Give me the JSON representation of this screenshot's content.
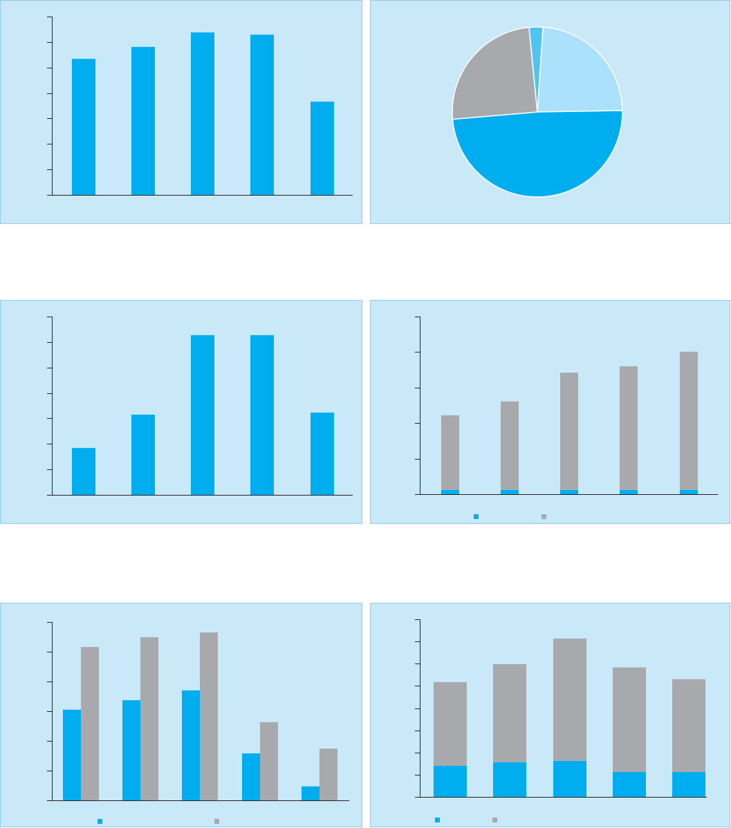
{
  "colors": {
    "panel_bg": "#c9e9f8",
    "axis": "#231f20",
    "blue": "#00aeef",
    "gray": "#a7a9ac",
    "light_blue": "#abe1fa",
    "cyan": "#4fc4f0"
  },
  "chart_data": [
    {
      "type": "bar",
      "grid": false,
      "ylim": [
        0,
        7
      ],
      "series": [
        {
          "color": "blue",
          "values": [
            5.34,
            5.81,
            6.38,
            6.29,
            3.66
          ]
        }
      ]
    },
    {
      "type": "pie",
      "slices": [
        {
          "color": "light_blue",
          "value": 23.7
        },
        {
          "color": "blue",
          "value": 48.9
        },
        {
          "color": "gray",
          "value": 24.8
        },
        {
          "color": "cyan",
          "value": 2.6
        }
      ]
    },
    {
      "type": "bar",
      "grid": false,
      "ylim": [
        0,
        7
      ],
      "series": [
        {
          "color": "blue",
          "values": [
            1.84,
            3.15,
            6.27,
            6.27,
            3.23
          ]
        }
      ]
    },
    {
      "type": "bar",
      "stacked": true,
      "grid": false,
      "ylim": [
        0,
        5
      ],
      "legend": "bottom",
      "series": [
        {
          "color": "blue",
          "values": [
            0.12,
            0.12,
            0.12,
            0.12,
            0.12
          ]
        },
        {
          "color": "gray",
          "values": [
            2.1,
            2.49,
            3.3,
            3.48,
            3.89
          ]
        }
      ]
    },
    {
      "type": "bar",
      "grouped": true,
      "grid": false,
      "ylim": [
        0,
        6
      ],
      "legend": "bottom",
      "series": [
        {
          "color": "blue",
          "values": [
            3.05,
            3.37,
            3.7,
            1.58,
            0.47
          ]
        },
        {
          "color": "gray",
          "values": [
            5.16,
            5.49,
            5.65,
            2.63,
            1.74
          ]
        }
      ]
    },
    {
      "type": "bar",
      "stacked": true,
      "grid": false,
      "ylim": [
        0,
        8
      ],
      "legend": "bottom",
      "series": [
        {
          "color": "blue",
          "values": [
            1.4,
            1.56,
            1.62,
            1.12,
            1.12
          ]
        },
        {
          "color": "gray",
          "values": [
            3.77,
            4.42,
            5.51,
            4.71,
            4.18
          ]
        }
      ]
    }
  ]
}
